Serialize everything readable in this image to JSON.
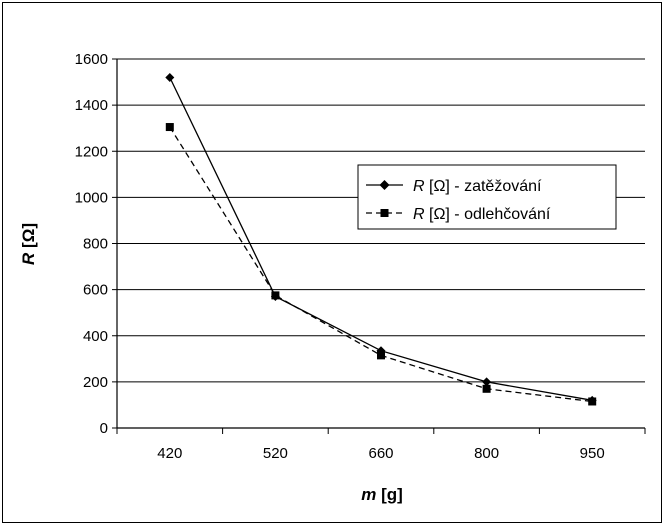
{
  "chart_data": {
    "type": "line",
    "categories": [
      "420",
      "520",
      "660",
      "800",
      "950"
    ],
    "series": [
      {
        "name": "R [Ω] - zatěžování",
        "values": [
          1520,
          570,
          335,
          200,
          120
        ],
        "marker": "diamond",
        "dash": "solid",
        "color": "#000000"
      },
      {
        "name": "R [Ω] - odlehčování",
        "values": [
          1305,
          575,
          315,
          170,
          115
        ],
        "marker": "square",
        "dash": "dashed",
        "color": "#000000"
      }
    ],
    "y_ticks": [
      "0",
      "200",
      "400",
      "600",
      "800",
      "1000",
      "1200",
      "1400",
      "1600"
    ],
    "ylim": [
      0,
      1600
    ],
    "grid": "horizontal",
    "legend": {
      "position": "center-right",
      "entries": [
        {
          "var": "R",
          "rest": " [Ω] - zatěžování"
        },
        {
          "var": "R",
          "rest": " [Ω] - odlehčování"
        }
      ]
    },
    "xlabel": {
      "var": "m",
      "unit": "[g]"
    },
    "ylabel": {
      "var": "R",
      "unit": "[Ω]"
    }
  }
}
